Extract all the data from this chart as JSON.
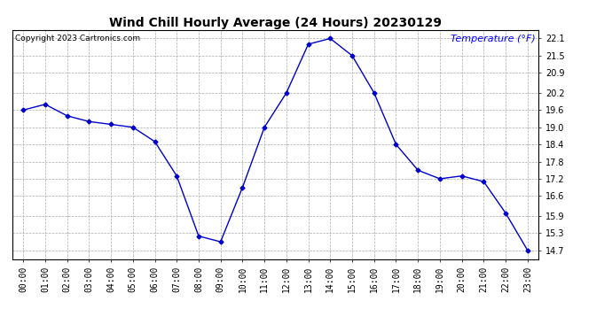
{
  "title": "Wind Chill Hourly Average (24 Hours) 20230129",
  "copyright_text": "Copyright 2023 Cartronics.com",
  "ylabel": "Temperature (°F)",
  "hours": [
    "00:00",
    "01:00",
    "02:00",
    "03:00",
    "04:00",
    "05:00",
    "06:00",
    "07:00",
    "08:00",
    "09:00",
    "10:00",
    "11:00",
    "12:00",
    "13:00",
    "14:00",
    "15:00",
    "16:00",
    "17:00",
    "18:00",
    "19:00",
    "20:00",
    "21:00",
    "22:00",
    "23:00"
  ],
  "values": [
    19.6,
    19.8,
    19.4,
    19.2,
    19.1,
    19.0,
    18.5,
    17.3,
    15.2,
    15.0,
    16.9,
    19.0,
    20.2,
    21.9,
    22.1,
    21.5,
    20.2,
    18.4,
    17.5,
    17.2,
    17.3,
    17.1,
    16.0,
    14.7
  ],
  "line_color": "#0000cc",
  "marker": "D",
  "marker_size": 2.5,
  "ylim_min": 14.4,
  "ylim_max": 22.4,
  "yticks": [
    14.7,
    15.3,
    15.9,
    16.6,
    17.2,
    17.8,
    18.4,
    19.0,
    19.6,
    20.2,
    20.9,
    21.5,
    22.1
  ],
  "background_color": "#ffffff",
  "grid_color": "#aaaaaa",
  "title_fontsize": 10,
  "ylabel_color": "#0000ff",
  "ylabel_fontsize": 8,
  "copyright_color": "#000000",
  "copyright_fontsize": 6.5,
  "tick_fontsize": 7,
  "line_width": 1.0
}
